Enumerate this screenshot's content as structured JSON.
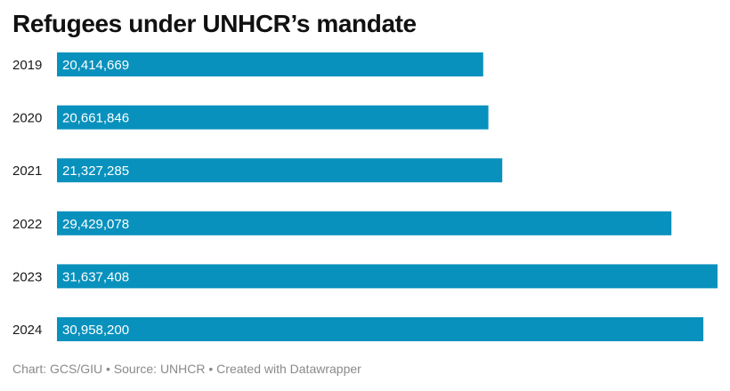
{
  "chart_data": {
    "type": "bar",
    "orientation": "horizontal",
    "title": "Refugees under UNHCR’s mandate",
    "categories": [
      "2019",
      "2020",
      "2021",
      "2022",
      "2023",
      "2024"
    ],
    "values": [
      20414669,
      20661846,
      21327285,
      29429078,
      31637408,
      30958200
    ],
    "value_labels": [
      "20,414,669",
      "20,661,846",
      "21,327,285",
      "29,429,078",
      "31,637,408",
      "30,958,200"
    ],
    "xlim": [
      0,
      31637408
    ],
    "grid": false,
    "legend": "none",
    "bar_color": "#0991bd",
    "label_color": "#ffffff"
  },
  "footer": {
    "credit": "Chart: GCS/GIU • Source: UNHCR • Created with Datawrapper"
  }
}
